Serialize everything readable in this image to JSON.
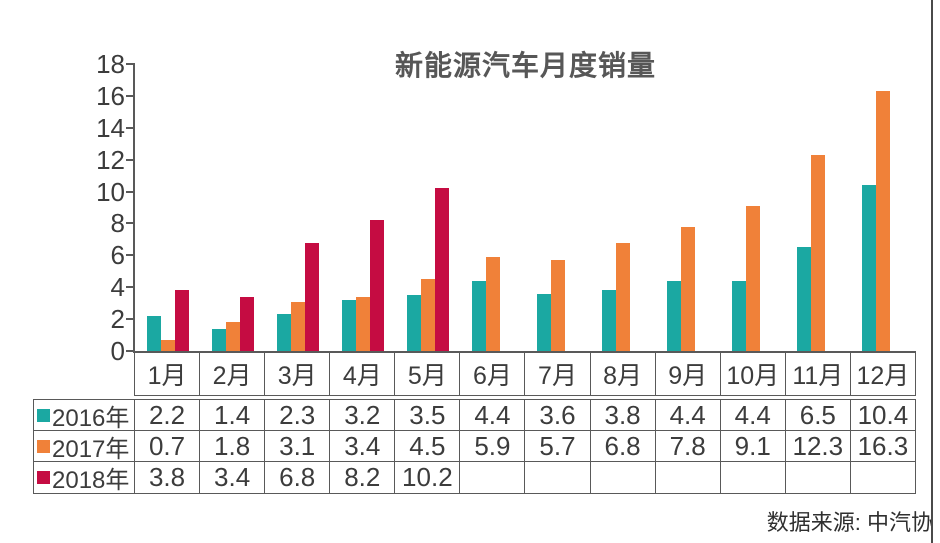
{
  "chart_data": {
    "type": "bar",
    "title": "新能源汽车月度销量",
    "categories": [
      "1月",
      "2月",
      "3月",
      "4月",
      "5月",
      "6月",
      "7月",
      "8月",
      "9月",
      "10月",
      "11月",
      "12月"
    ],
    "series": [
      {
        "name": "2016年",
        "color": "#1BA8A2",
        "values": [
          2.2,
          1.4,
          2.3,
          3.2,
          3.5,
          4.4,
          3.6,
          3.8,
          4.4,
          4.4,
          6.5,
          10.4
        ]
      },
      {
        "name": "2017年",
        "color": "#F08139",
        "values": [
          0.7,
          1.8,
          3.1,
          3.4,
          4.5,
          5.9,
          5.7,
          6.8,
          7.8,
          9.1,
          12.3,
          16.3
        ]
      },
      {
        "name": "2018年",
        "color": "#C50C42",
        "values": [
          3.8,
          3.4,
          6.8,
          8.2,
          10.2,
          null,
          null,
          null,
          null,
          null,
          null,
          null
        ]
      }
    ],
    "ylim": [
      0,
      18
    ],
    "ytick_step": 2,
    "grid": false,
    "legend_position": "table-left"
  },
  "source": "数据来源: 中汽协"
}
